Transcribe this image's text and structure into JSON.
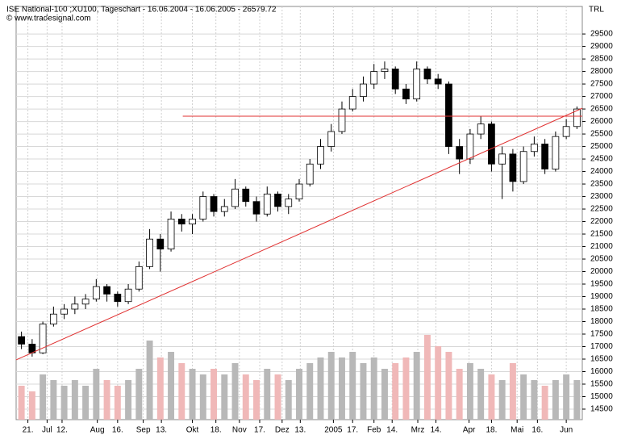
{
  "chart_data": {
    "type": "candlestick",
    "title": "ISE National-100 ;XU100, Tageschart - 16.06.2004 - 16.06.2005 - 26579.72",
    "subtitle": "© www.tradesignal.com",
    "y_axis_label": "TRL",
    "open": [
      17400,
      17100,
      16750,
      17900,
      18300,
      18500,
      18700,
      18900,
      19400,
      19100,
      18800,
      19300,
      20200,
      21300,
      20900,
      22100,
      21900,
      22100,
      23000,
      22400,
      22600,
      23300,
      22800,
      22300,
      23100,
      22600,
      22900,
      23500,
      24300,
      25000,
      25600,
      26500,
      27000,
      27500,
      28000,
      28100,
      27300,
      26900,
      28100,
      27700,
      27500,
      25000,
      24500,
      25500,
      25900,
      24300,
      24700,
      23600,
      24800,
      25100,
      24100,
      25400,
      25800
    ],
    "high": [
      17600,
      17300,
      18000,
      18600,
      18700,
      19000,
      19100,
      19700,
      19500,
      19200,
      19500,
      20400,
      21700,
      21500,
      22400,
      22300,
      22300,
      23200,
      23100,
      22900,
      23700,
      23400,
      23000,
      23400,
      23200,
      23100,
      23700,
      24500,
      25300,
      25900,
      26800,
      27300,
      27800,
      28300,
      28400,
      28200,
      27500,
      28400,
      28200,
      27900,
      27600,
      25300,
      25700,
      26200,
      26000,
      25000,
      24900,
      25000,
      25400,
      25300,
      25600,
      26100,
      26600
    ],
    "low": [
      16900,
      16600,
      16700,
      17800,
      18100,
      18300,
      18500,
      18800,
      18800,
      18600,
      18700,
      19200,
      20100,
      20000,
      20800,
      21600,
      21500,
      22000,
      22200,
      22200,
      22500,
      22600,
      22000,
      22200,
      22400,
      22300,
      22800,
      23400,
      24100,
      24800,
      25500,
      26400,
      26800,
      27300,
      27700,
      27100,
      26700,
      26800,
      27500,
      27300,
      24700,
      23900,
      24300,
      25300,
      24000,
      22900,
      23200,
      23500,
      24600,
      23900,
      24000,
      25300,
      25700
    ],
    "close": [
      17100,
      16750,
      17900,
      18300,
      18500,
      18700,
      18900,
      19400,
      19100,
      18800,
      19300,
      20200,
      21300,
      20900,
      22100,
      21900,
      22100,
      23000,
      22400,
      22600,
      23300,
      22800,
      22300,
      23100,
      22600,
      22900,
      23500,
      24300,
      25000,
      25600,
      26500,
      27000,
      27500,
      28000,
      28100,
      27300,
      26900,
      28100,
      27700,
      27500,
      25000,
      24500,
      25500,
      25900,
      24300,
      24700,
      23600,
      24800,
      25100,
      24100,
      25400,
      25800,
      26500
    ],
    "volume": [
      30,
      25,
      40,
      35,
      30,
      35,
      30,
      45,
      35,
      30,
      35,
      45,
      70,
      55,
      60,
      50,
      45,
      40,
      45,
      40,
      50,
      40,
      35,
      45,
      40,
      35,
      45,
      50,
      55,
      60,
      55,
      60,
      50,
      55,
      45,
      50,
      55,
      60,
      75,
      65,
      60,
      45,
      50,
      45,
      40,
      35,
      50,
      40,
      35,
      30,
      35,
      40,
      35
    ],
    "up_color": "#ffffff",
    "down_color": "#000000",
    "volume_up_color": "#b8b8b8",
    "volume_down_color": "#f0b8b8",
    "lines": [
      {
        "color": "#e03030",
        "x": [
          -0.5,
          52.5
        ],
        "values": [
          16470,
          26530
        ]
      },
      {
        "color": "#e03030",
        "x": [
          15.1,
          52.5
        ],
        "values": [
          26210,
          26210
        ]
      }
    ],
    "xlim": [
      -0.5,
      52.5
    ],
    "xticks": [
      {
        "value": 0.6,
        "label": "21."
      },
      {
        "value": 2.4,
        "label": "Jul"
      },
      {
        "value": 3.8,
        "label": "12."
      },
      {
        "value": 7.1,
        "label": "Aug"
      },
      {
        "value": 9.0,
        "label": "16."
      },
      {
        "value": 11.4,
        "label": "Sep"
      },
      {
        "value": 13.1,
        "label": "13."
      },
      {
        "value": 16.0,
        "label": "Okt"
      },
      {
        "value": 18.2,
        "label": "18."
      },
      {
        "value": 20.4,
        "label": "Nov"
      },
      {
        "value": 22.3,
        "label": "17."
      },
      {
        "value": 24.4,
        "label": "Dez"
      },
      {
        "value": 26.1,
        "label": "13."
      },
      {
        "value": 29.2,
        "label": "2005"
      },
      {
        "value": 31.0,
        "label": "17."
      },
      {
        "value": 33.0,
        "label": "Feb"
      },
      {
        "value": 34.7,
        "label": "14."
      },
      {
        "value": 37.1,
        "label": "Mrz"
      },
      {
        "value": 38.8,
        "label": "14."
      },
      {
        "value": 41.9,
        "label": "Apr"
      },
      {
        "value": 44.0,
        "label": "18."
      },
      {
        "value": 46.4,
        "label": "Mai"
      },
      {
        "value": 48.3,
        "label": "16."
      },
      {
        "value": 51.0,
        "label": "Jun"
      }
    ],
    "ylim": [
      14080,
      30600
    ],
    "yticks": [
      14500,
      15000,
      15500,
      16000,
      16500,
      17000,
      17500,
      18000,
      18500,
      19000,
      19500,
      20000,
      20500,
      21000,
      21500,
      22000,
      22500,
      23000,
      23500,
      24000,
      24500,
      25000,
      25500,
      26000,
      26500,
      27000,
      27500,
      28000,
      28500,
      29000,
      29500
    ],
    "grid": true
  }
}
